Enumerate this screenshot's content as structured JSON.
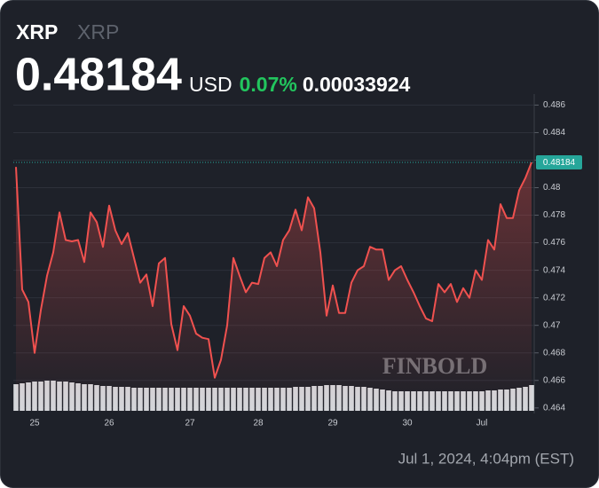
{
  "header": {
    "symbol": "XRP",
    "name": "XRP",
    "price": "0.48184",
    "currency": "USD",
    "change_percent": "0.07%",
    "change": "0.00033924"
  },
  "footer": {
    "timestamp": "Jul 1, 2024, 4:04pm (EST)"
  },
  "chart_data": {
    "type": "line",
    "watermark": "FINBOLD",
    "categories": [
      null,
      null,
      null,
      "25",
      null,
      null,
      null,
      null,
      null,
      null,
      null,
      null,
      null,
      null,
      null,
      "26",
      null,
      null,
      null,
      null,
      null,
      null,
      null,
      null,
      null,
      null,
      null,
      null,
      "27",
      null,
      null,
      null,
      null,
      null,
      null,
      null,
      null,
      null,
      null,
      "28",
      null,
      null,
      null,
      null,
      null,
      null,
      null,
      null,
      null,
      null,
      null,
      "29",
      null,
      null,
      null,
      null,
      null,
      null,
      null,
      null,
      null,
      null,
      null,
      "30",
      null,
      null,
      null,
      null,
      null,
      null,
      null,
      null,
      null,
      null,
      null,
      "Jul",
      null,
      null,
      null,
      null,
      null,
      null,
      null,
      null
    ],
    "series": [
      {
        "name": "XRP",
        "color": "#f0514f",
        "values": [
          0.4815,
          0.4726,
          0.4717,
          0.468,
          0.4711,
          0.4736,
          0.4753,
          0.4782,
          0.4762,
          0.4761,
          0.4762,
          0.4746,
          0.4782,
          0.4775,
          0.4757,
          0.4787,
          0.4769,
          0.4759,
          0.4767,
          0.4749,
          0.4731,
          0.4737,
          0.4714,
          0.4745,
          0.4749,
          0.4701,
          0.4682,
          0.4714,
          0.4707,
          0.4694,
          0.4691,
          0.469,
          0.4662,
          0.4675,
          0.47,
          0.4749,
          0.4736,
          0.4724,
          0.4731,
          0.473,
          0.4749,
          0.4753,
          0.4743,
          0.4762,
          0.4769,
          0.4784,
          0.4769,
          0.4793,
          0.4785,
          0.4753,
          0.4707,
          0.4729,
          0.4709,
          0.4709,
          0.4731,
          0.474,
          0.4743,
          0.4757,
          0.4755,
          0.4755,
          0.4733,
          0.474,
          0.4743,
          0.4733,
          0.4724,
          0.4714,
          0.4705,
          0.4703,
          0.473,
          0.4724,
          0.473,
          0.4717,
          0.4727,
          0.472,
          0.474,
          0.4733,
          0.4762,
          0.4755,
          0.4788,
          0.4778,
          0.4778,
          0.4798,
          0.4807,
          0.48184
        ]
      }
    ],
    "volume": [
      30,
      31,
      32,
      33,
      33,
      34,
      34,
      33,
      33,
      32,
      31,
      30,
      30,
      29,
      28,
      28,
      27,
      27,
      27,
      26,
      26,
      26,
      26,
      26,
      26,
      26,
      26,
      26,
      26,
      26,
      26,
      26,
      26,
      26,
      26,
      26,
      26,
      26,
      26,
      26,
      26,
      26,
      26,
      26,
      26,
      27,
      27,
      27,
      28,
      28,
      29,
      29,
      29,
      28,
      28,
      27,
      27,
      26,
      25,
      24,
      23,
      22,
      22,
      22,
      22,
      22,
      22,
      22,
      22,
      22,
      22,
      22,
      22,
      22,
      22,
      22,
      23,
      23,
      24,
      24,
      25,
      26,
      27,
      29
    ],
    "volume_color": "#d4d6da",
    "last_price_color": "#26a69a",
    "ylim": [
      0.4636,
      0.4868
    ],
    "yticks": [
      0.464,
      0.466,
      0.468,
      0.47,
      0.472,
      0.474,
      0.476,
      0.478,
      0.48,
      0.482,
      0.484,
      0.486
    ],
    "grid": true
  }
}
